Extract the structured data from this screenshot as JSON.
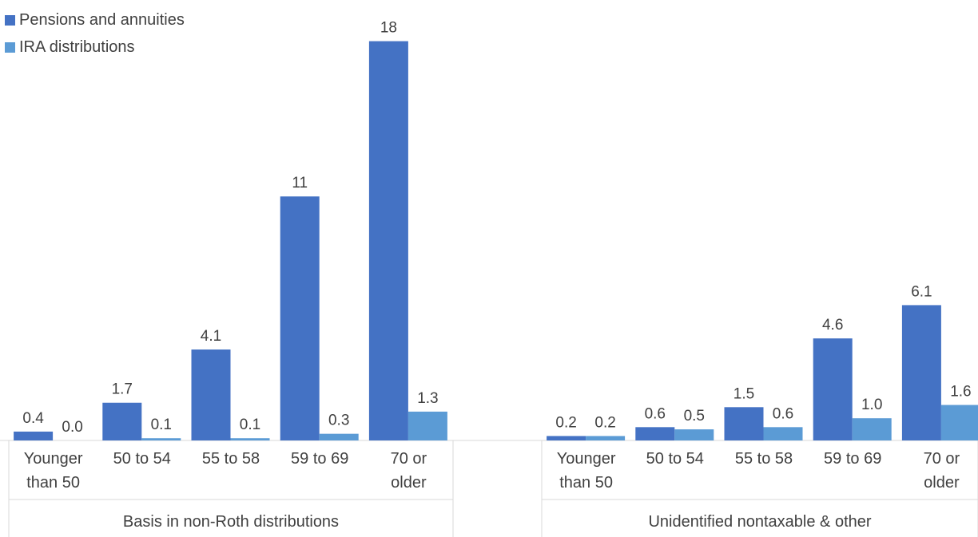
{
  "chart_data": {
    "type": "bar",
    "title": "",
    "xlabel": "",
    "ylabel": "",
    "ylim": [
      0,
      18.5
    ],
    "grid": false,
    "legend_position": "top-left",
    "groups": [
      {
        "label": "Basis in non-Roth distributions",
        "categories": [
          "Younger than 50",
          "50 to 54",
          "55 to 58",
          "59 to 69",
          "70 or older"
        ]
      },
      {
        "label": "Unidentified nontaxable & other",
        "categories": [
          "Younger than 50",
          "50 to 54",
          "55 to 58",
          "59 to 69",
          "70 or older"
        ]
      }
    ],
    "series": [
      {
        "name": "Pensions and annuities",
        "color": "#4472C4",
        "values": [
          0.4,
          1.7,
          4.1,
          11,
          18,
          0.2,
          0.6,
          1.5,
          4.6,
          6.1
        ],
        "labels": [
          "0.4",
          "1.7",
          "4.1",
          "11",
          "18",
          "0.2",
          "0.6",
          "1.5",
          "4.6",
          "6.1"
        ]
      },
      {
        "name": "IRA distributions",
        "color": "#5B9BD5",
        "values": [
          0.0,
          0.1,
          0.1,
          0.3,
          1.3,
          0.2,
          0.5,
          0.6,
          1.0,
          1.6
        ],
        "labels": [
          "0.0",
          "0.1",
          "0.1",
          "0.3",
          "1.3",
          "0.2",
          "0.5",
          "0.6",
          "1.0",
          "1.6"
        ]
      }
    ]
  }
}
